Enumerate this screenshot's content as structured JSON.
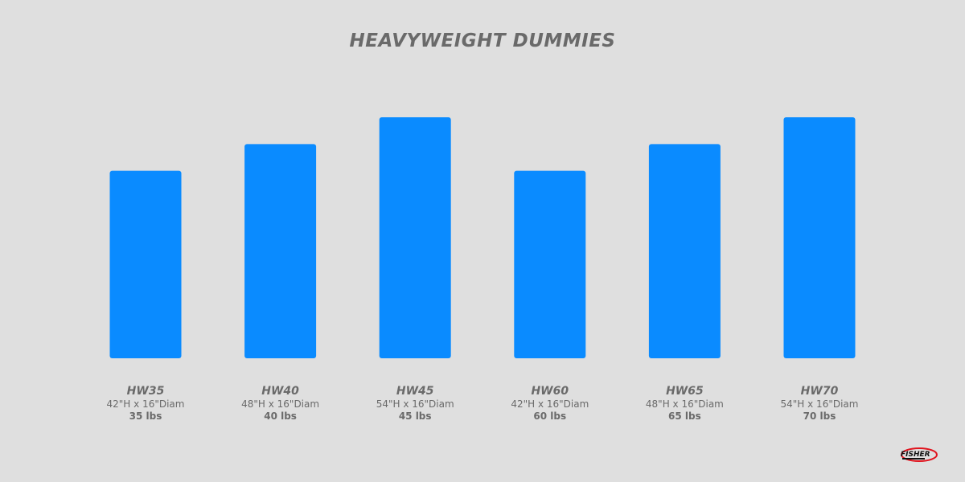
{
  "chart_data": {
    "type": "bar",
    "title": "HEAVYWEIGHT DUMMIES",
    "categories": [
      "HW35",
      "HW40",
      "HW45",
      "HW60",
      "HW65",
      "HW70"
    ],
    "values": [
      42,
      48,
      54,
      42,
      48,
      54
    ],
    "dimensions": [
      "42\"H x 16\"Diam",
      "48\"H x 16\"Diam",
      "54\"H x 16\"Diam",
      "42\"H x 16\"Diam",
      "48\"H x 16\"Diam",
      "54\"H x 16\"Diam"
    ],
    "weights": [
      "35 lbs",
      "40 lbs",
      "45 lbs",
      "60 lbs",
      "65 lbs",
      "70 lbs"
    ],
    "xlabel": "",
    "ylabel": "",
    "ylim": [
      0,
      54
    ],
    "grid": false,
    "bar_color": "#0a8bff"
  },
  "logo": {
    "text": "FISHER"
  }
}
